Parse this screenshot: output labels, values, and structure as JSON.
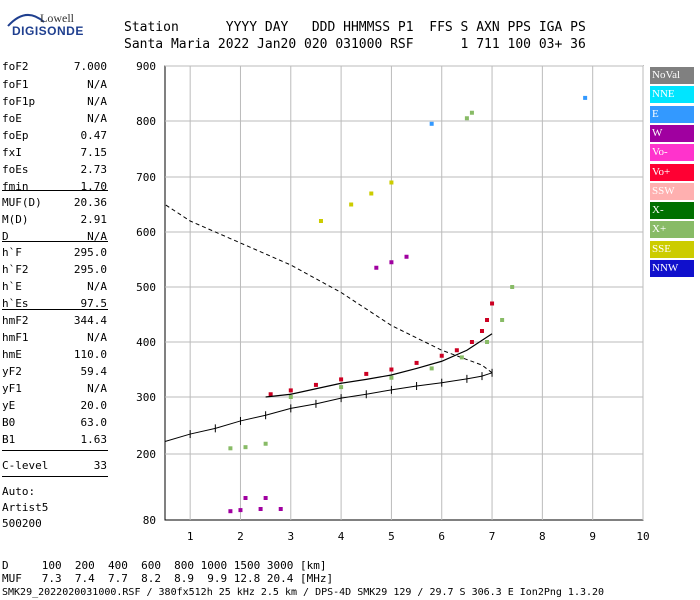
{
  "logo": {
    "brand": "Lowell",
    "product": "DIGISONDE"
  },
  "header": {
    "labels": "Station      YYYY DAY   DDD HHMMSS P1  FFS S AXN PPS IGA PS",
    "values": "Santa Maria 2022 Jan20 020 031000 RSF      1 711 100 03+ 36"
  },
  "params": [
    {
      "label": "foF2",
      "value": "7.000"
    },
    {
      "label": "foF1",
      "value": "N/A"
    },
    {
      "label": "foF1p",
      "value": "N/A"
    },
    {
      "label": "foE",
      "value": "N/A"
    },
    {
      "label": "foEp",
      "value": "0.47"
    },
    {
      "label": "fxI",
      "value": "7.15"
    },
    {
      "label": "foEs",
      "value": "2.73"
    },
    {
      "label": "fmin",
      "value": "1.70"
    },
    {
      "label": "MUF(D)",
      "value": "20.36"
    },
    {
      "label": "M(D)",
      "value": "2.91"
    },
    {
      "label": "D",
      "value": "N/A"
    },
    {
      "label": "h`F",
      "value": "295.0"
    },
    {
      "label": "h`F2",
      "value": "295.0"
    },
    {
      "label": "h`E",
      "value": "N/A"
    },
    {
      "label": "h`Es",
      "value": "97.5"
    },
    {
      "label": "hmF2",
      "value": "344.4"
    },
    {
      "label": "hmF1",
      "value": "N/A"
    },
    {
      "label": "hmE",
      "value": "110.0"
    },
    {
      "label": "yF2",
      "value": "59.4"
    },
    {
      "label": "yF1",
      "value": "N/A"
    },
    {
      "label": "yE",
      "value": "20.0"
    },
    {
      "label": "B0",
      "value": "63.0"
    },
    {
      "label": "B1",
      "value": "1.63"
    },
    {
      "label": "C-level",
      "value": "33"
    }
  ],
  "auto": {
    "line1": "Auto:",
    "line2": "Artist5",
    "line3": "500200"
  },
  "legend": [
    {
      "label": "NoVal",
      "color": "#808080"
    },
    {
      "label": "NNE",
      "color": "#00e5ff"
    },
    {
      "label": "E",
      "color": "#3399ff"
    },
    {
      "label": "W",
      "color": "#a000a0"
    },
    {
      "label": "Vo-",
      "color": "#ff33cc"
    },
    {
      "label": "Vo+",
      "color": "#ff0033"
    },
    {
      "label": "SSW",
      "color": "#ffb0b0"
    },
    {
      "label": "X-",
      "color": "#007000"
    },
    {
      "label": "X+",
      "color": "#88bb66"
    },
    {
      "label": "SSE",
      "color": "#cccc00"
    },
    {
      "label": "NNW",
      "color": "#1010cc"
    }
  ],
  "bottom": {
    "d_line": "D     100  200  400  600  800 1000 1500 3000 [km]",
    "muf_line": "MUF   7.3  7.4  7.7  8.2  8.9  9.9 12.8 20.4 [MHz]",
    "file_line": "SMK29_2022020031000.RSF / 380fx512h 25 kHz 2.5 km / DPS-4D SMK29 129 / 29.7 S 306.3 E Ion2Png 1.3.20"
  },
  "chart_data": {
    "type": "scatter",
    "title": "",
    "xlabel": "",
    "ylabel": "",
    "xlim": [
      0.5,
      10
    ],
    "ylim": [
      80,
      900
    ],
    "x_ticks": [
      1,
      2,
      3,
      4,
      5,
      6,
      7,
      8,
      9,
      10
    ],
    "y_ticks": [
      80,
      200,
      300,
      400,
      500,
      600,
      700,
      800,
      900
    ],
    "grid": true,
    "series": [
      {
        "color": "#cc0022",
        "points": [
          [
            2.6,
            305
          ],
          [
            3.0,
            312
          ],
          [
            3.5,
            322
          ],
          [
            4.0,
            332
          ],
          [
            4.5,
            342
          ],
          [
            5.0,
            350
          ],
          [
            5.5,
            362
          ],
          [
            6.0,
            375
          ],
          [
            6.3,
            385
          ],
          [
            6.6,
            400
          ],
          [
            6.8,
            420
          ],
          [
            6.9,
            440
          ],
          [
            7.0,
            470
          ]
        ]
      },
      {
        "color": "#88bb66",
        "points": [
          [
            3.0,
            300
          ],
          [
            4.0,
            318
          ],
          [
            5.0,
            335
          ],
          [
            5.8,
            352
          ],
          [
            6.4,
            372
          ],
          [
            6.9,
            400
          ],
          [
            7.2,
            440
          ],
          [
            7.4,
            500
          ]
        ]
      },
      {
        "color": "#a000a0",
        "points": [
          [
            4.7,
            535
          ],
          [
            5.0,
            545
          ],
          [
            5.3,
            555
          ]
        ]
      },
      {
        "color": "#cccc00",
        "points": [
          [
            3.6,
            620
          ],
          [
            4.2,
            650
          ],
          [
            4.6,
            670
          ],
          [
            5.0,
            690
          ]
        ]
      },
      {
        "color": "#a000a0",
        "points": [
          [
            1.8,
            96
          ],
          [
            2.0,
            98
          ],
          [
            2.4,
            100
          ],
          [
            2.8,
            100
          ],
          [
            2.1,
            120
          ],
          [
            2.5,
            120
          ]
        ]
      },
      {
        "color": "#88bb66",
        "points": [
          [
            1.8,
            210
          ],
          [
            2.1,
            212
          ],
          [
            2.5,
            218
          ]
        ]
      },
      {
        "color": "#3399ff",
        "points": [
          [
            5.8,
            795
          ],
          [
            8.85,
            842
          ]
        ]
      },
      {
        "color": "#88bb66",
        "points": [
          [
            6.5,
            805
          ],
          [
            6.6,
            815
          ]
        ]
      }
    ],
    "profile": [
      [
        0.5,
        222
      ],
      [
        1.0,
        235
      ],
      [
        1.5,
        245
      ],
      [
        2.0,
        258
      ],
      [
        2.5,
        268
      ],
      [
        3.0,
        280
      ],
      [
        3.5,
        288
      ],
      [
        4.0,
        298
      ],
      [
        4.5,
        305
      ],
      [
        5.0,
        313
      ],
      [
        5.5,
        320
      ],
      [
        6.0,
        326
      ],
      [
        6.5,
        333
      ],
      [
        6.8,
        338
      ],
      [
        7.0,
        344
      ]
    ],
    "topside": [
      [
        7.0,
        344
      ],
      [
        6.8,
        358
      ],
      [
        6.0,
        385
      ],
      [
        5.0,
        430
      ],
      [
        4.0,
        490
      ],
      [
        3.0,
        540
      ],
      [
        2.0,
        580
      ],
      [
        1.0,
        620
      ],
      [
        0.5,
        650
      ]
    ],
    "trace": [
      [
        2.5,
        300
      ],
      [
        3.0,
        305
      ],
      [
        3.5,
        315
      ],
      [
        4.0,
        325
      ],
      [
        4.5,
        332
      ],
      [
        5.0,
        340
      ],
      [
        5.5,
        352
      ],
      [
        6.0,
        365
      ],
      [
        6.5,
        385
      ],
      [
        7.0,
        415
      ]
    ]
  }
}
